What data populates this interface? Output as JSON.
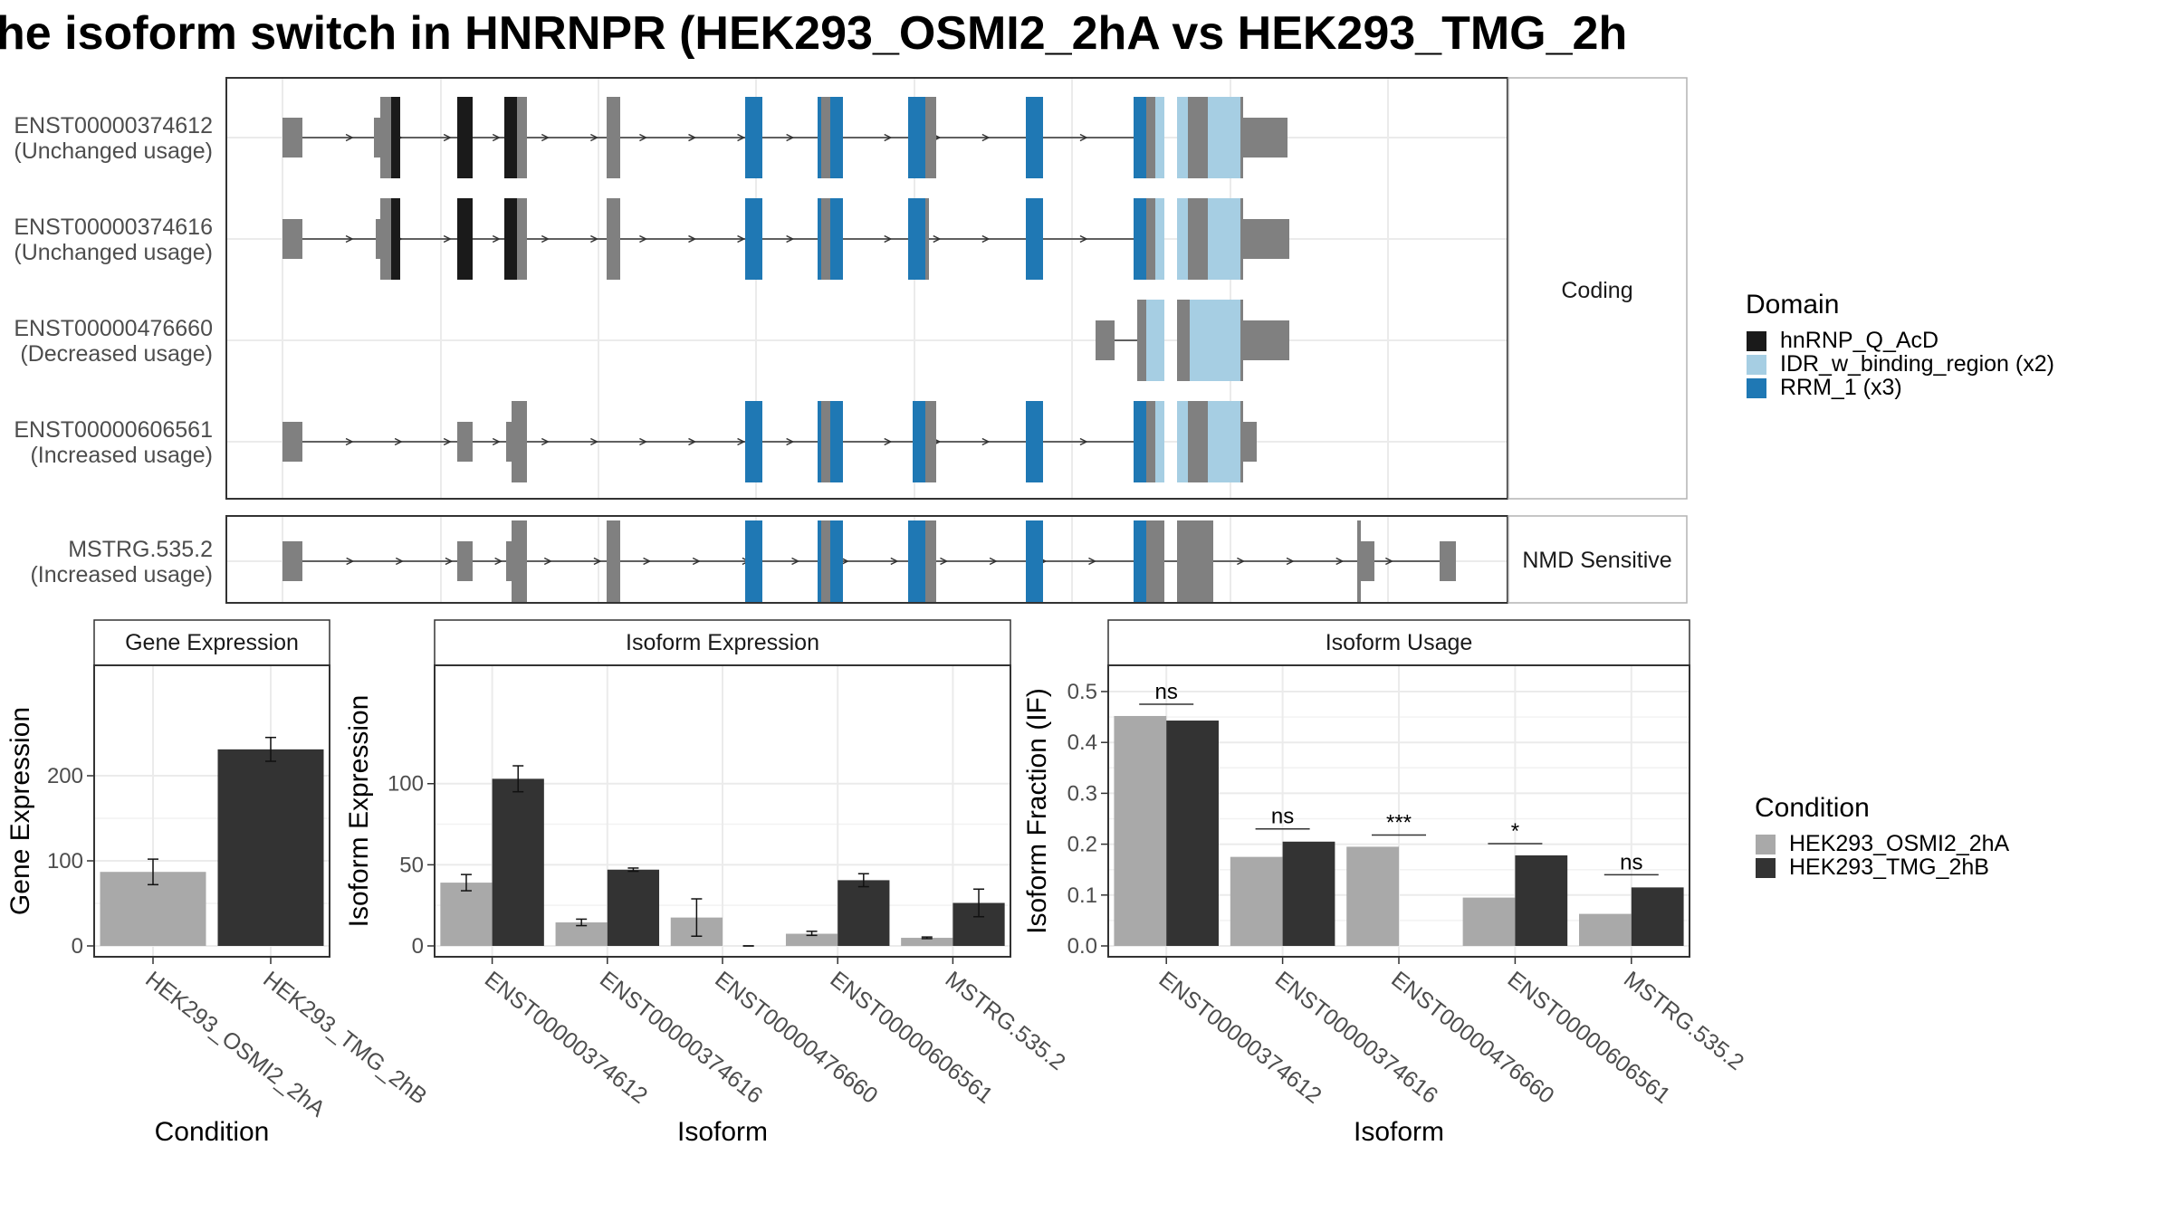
{
  "title": "he isoform switch in HNRNPR (HEK293_OSMI2_2hA vs HEK293_TMG_2h",
  "colors": {
    "exon_noncoding": "#808080",
    "hnRNP_Q_AcD": "#1a1a1a",
    "IDR_w_binding_region": "#a6cee3",
    "RRM_1": "#1f78b4",
    "cond1": "#a9a9a9",
    "cond2": "#333333"
  },
  "structure": {
    "groups": [
      {
        "label": "Coding"
      },
      {
        "label": "NMD Sensitive"
      }
    ],
    "transcripts": [
      {
        "id": "ENST00000374612",
        "usage": "(Unchanged usage)"
      },
      {
        "id": "ENST00000374616",
        "usage": "(Unchanged usage)"
      },
      {
        "id": "ENST00000476660",
        "usage": "(Decreased usage)"
      },
      {
        "id": "ENST00000606561",
        "usage": "(Increased usage)"
      },
      {
        "id": "MSTRG.535.2",
        "usage": "(Increased usage)"
      }
    ],
    "domain_legend": {
      "title": "Domain",
      "items": [
        {
          "name": "hnRNP_Q_AcD",
          "color": "#1a1a1a"
        },
        {
          "name": "IDR_w_binding_region (x2)",
          "color": "#a6cee3"
        },
        {
          "name": "RRM_1 (x3)",
          "color": "#1f78b4"
        }
      ]
    }
  },
  "condition_legend": {
    "title": "Condition",
    "items": [
      {
        "name": "HEK293_OSMI2_2hA",
        "color": "#a9a9a9"
      },
      {
        "name": "HEK293_TMG_2hB",
        "color": "#333333"
      }
    ]
  },
  "chart_data": [
    {
      "type": "bar",
      "panel_title": "Gene Expression",
      "xlabel": "Condition",
      "ylabel": "Gene Expression",
      "categories": [
        "HEK293_OSMI2_2hA",
        "HEK293_TMG_2hB"
      ],
      "values": [
        87,
        231
      ],
      "errors": [
        [
          72,
          102
        ],
        [
          217,
          245
        ]
      ],
      "colors": [
        "#a9a9a9",
        "#333333"
      ],
      "yticks": [
        0,
        100,
        200
      ],
      "ylim": [
        0,
        300
      ],
      "grid": true
    },
    {
      "type": "bar",
      "panel_title": "Isoform Expression",
      "xlabel": "Isoform",
      "ylabel": "Isoform Expression",
      "categories": [
        "ENST00000374612",
        "ENST00000374616",
        "ENST00000476660",
        "ENST00000606561",
        "MSTRG.535.2"
      ],
      "series": [
        {
          "name": "HEK293_OSMI2_2hA",
          "values": [
            39,
            14.5,
            17.5,
            7.5,
            5
          ],
          "errors": [
            [
              34,
              44
            ],
            [
              12.5,
              16.5
            ],
            [
              6,
              29
            ],
            [
              6.5,
              9
            ],
            [
              4.5,
              5.5
            ]
          ]
        },
        {
          "name": "HEK293_TMG_2hB",
          "values": [
            103,
            47,
            0,
            40.5,
            26.5
          ],
          "errors": [
            [
              95,
              111
            ],
            [
              46,
              48
            ],
            [
              0,
              0
            ],
            [
              36.5,
              44.5
            ],
            [
              18,
              35
            ]
          ]
        }
      ],
      "yticks": [
        0,
        50,
        100
      ],
      "ylim": [
        0,
        135
      ],
      "grid": true
    },
    {
      "type": "bar",
      "panel_title": "Isoform Usage",
      "xlabel": "Isoform",
      "ylabel": "Isoform Fraction (IF)",
      "categories": [
        "ENST00000374612",
        "ENST00000374616",
        "ENST00000476660",
        "ENST00000606561",
        "MSTRG.535.2"
      ],
      "series": [
        {
          "name": "HEK293_OSMI2_2hA",
          "values": [
            0.452,
            0.175,
            0.195,
            0.095,
            0.063
          ]
        },
        {
          "name": "HEK293_TMG_2hB",
          "values": [
            0.443,
            0.205,
            0,
            0.178,
            0.115
          ]
        }
      ],
      "significance": [
        "ns",
        "ns",
        "***",
        "*",
        "ns"
      ],
      "sig_levels": [
        0.475,
        0.23,
        0.218,
        0.201,
        0.14
      ],
      "yticks": [
        0.0,
        0.1,
        0.2,
        0.3,
        0.4,
        0.5
      ],
      "ylim": [
        0,
        0.5
      ],
      "grid": true
    }
  ]
}
